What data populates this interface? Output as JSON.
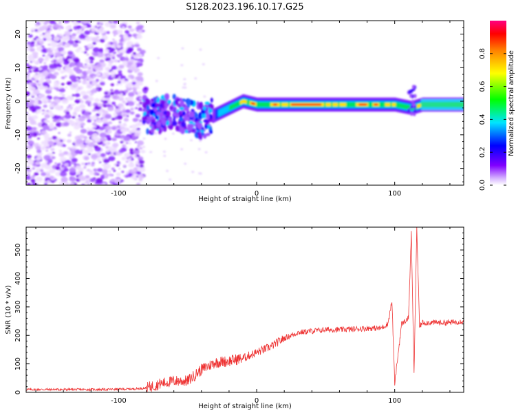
{
  "title": "S128.2023.196.10.17.G25",
  "chart_data": [
    {
      "type": "heatmap",
      "xlabel": "Height of straight line (km)",
      "ylabel": "Frequency (Hz)",
      "xlim": [
        -167,
        150
      ],
      "ylim": [
        -25,
        24
      ],
      "x_ticks": [
        -100,
        0,
        100
      ],
      "y_ticks": [
        -20,
        -10,
        0,
        10,
        20
      ],
      "colorbar": {
        "label": "Normalized spectral amplitude",
        "range": [
          0,
          1
        ],
        "ticks": [
          0.0,
          0.2,
          0.4,
          0.6,
          0.8
        ],
        "colormap": "rainbow",
        "colors": [
          "#ffffff",
          "#8000ff",
          "#0000ff",
          "#00e5ff",
          "#00ff00",
          "#ffff00",
          "#ff8000",
          "#ff0000",
          "#ff0080"
        ]
      },
      "ridge": {
        "description_points": [
          [
            -80,
            -5
          ],
          [
            -60,
            -3
          ],
          [
            -40,
            -6
          ],
          [
            -30,
            -4
          ],
          [
            -20,
            -2
          ],
          [
            -10,
            0
          ],
          [
            0,
            -1
          ],
          [
            20,
            -1
          ],
          [
            50,
            -1
          ],
          [
            80,
            -1
          ],
          [
            100,
            -1
          ],
          [
            112,
            -2
          ],
          [
            120,
            -1
          ],
          [
            150,
            -1
          ]
        ]
      },
      "grid": false
    },
    {
      "type": "line",
      "xlabel": "Height of straight line (km)",
      "ylabel": "SNR (10 * v/v)",
      "xlim": [
        -167,
        150
      ],
      "ylim": [
        0,
        580
      ],
      "x_ticks": [
        -100,
        0,
        100
      ],
      "y_ticks": [
        0,
        100,
        200,
        300,
        400,
        500
      ],
      "series": [
        {
          "color": "#ee3333",
          "x": [
            -167,
            -140,
            -110,
            -90,
            -80,
            -70,
            -60,
            -50,
            -40,
            -30,
            -20,
            -10,
            0,
            10,
            20,
            30,
            40,
            50,
            60,
            70,
            80,
            90,
            95,
            98,
            100,
            105,
            110,
            112,
            114,
            116,
            118,
            120,
            130,
            140,
            150
          ],
          "y": [
            10,
            10,
            10,
            12,
            15,
            30,
            40,
            40,
            80,
            105,
            110,
            120,
            140,
            160,
            190,
            210,
            215,
            220,
            220,
            222,
            225,
            225,
            240,
            320,
            30,
            240,
            260,
            560,
            60,
            580,
            230,
            245,
            245,
            245,
            250
          ]
        }
      ],
      "grid": false
    }
  ]
}
